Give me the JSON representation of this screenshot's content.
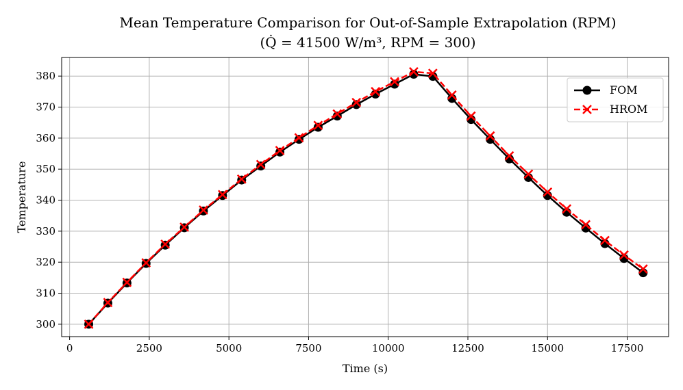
{
  "chart_data": {
    "type": "line",
    "title": "Mean Temperature Comparison for Out-of-Sample Extrapolation (RPM)",
    "subtitle": "(Q̇ = 41500 W/m³, RPM = 300)",
    "xlabel": "Time (s)",
    "ylabel": "Temperature",
    "xlim": [
      -250,
      18800
    ],
    "ylim": [
      296,
      386
    ],
    "xticks": [
      0,
      2500,
      5000,
      7500,
      10000,
      12500,
      15000,
      17500
    ],
    "yticks": [
      300,
      310,
      320,
      330,
      340,
      350,
      360,
      370,
      380
    ],
    "grid": true,
    "legend_position": "top-right",
    "x": [
      600,
      1200,
      1800,
      2400,
      3000,
      3600,
      4200,
      4800,
      5400,
      6000,
      6600,
      7200,
      7800,
      8400,
      9000,
      9600,
      10200,
      10800,
      11400,
      12000,
      12600,
      13200,
      13800,
      14400,
      15000,
      15600,
      16200,
      16800,
      17400,
      18000
    ],
    "series": [
      {
        "name": "FOM",
        "color": "#000000",
        "marker": "circle",
        "linestyle": "solid",
        "values": [
          300.0,
          306.8,
          313.3,
          319.6,
          325.5,
          331.1,
          336.5,
          341.5,
          346.5,
          351.0,
          355.5,
          359.6,
          363.5,
          367.1,
          370.8,
          374.2,
          377.4,
          380.6,
          379.9,
          372.8,
          366.0,
          359.6,
          353.3,
          347.3,
          341.5,
          336.1,
          331.0,
          326.0,
          321.2,
          316.6
        ]
      },
      {
        "name": "HROM",
        "color": "#ff0000",
        "marker": "x",
        "linestyle": "dashed",
        "values": [
          300.0,
          307.0,
          313.5,
          319.8,
          325.8,
          331.3,
          336.8,
          341.8,
          346.8,
          351.5,
          356.0,
          360.1,
          364.1,
          367.8,
          371.5,
          375.0,
          378.2,
          381.4,
          380.9,
          373.9,
          367.1,
          360.7,
          354.3,
          348.4,
          342.6,
          337.2,
          332.1,
          327.0,
          322.3,
          317.8
        ]
      }
    ]
  }
}
